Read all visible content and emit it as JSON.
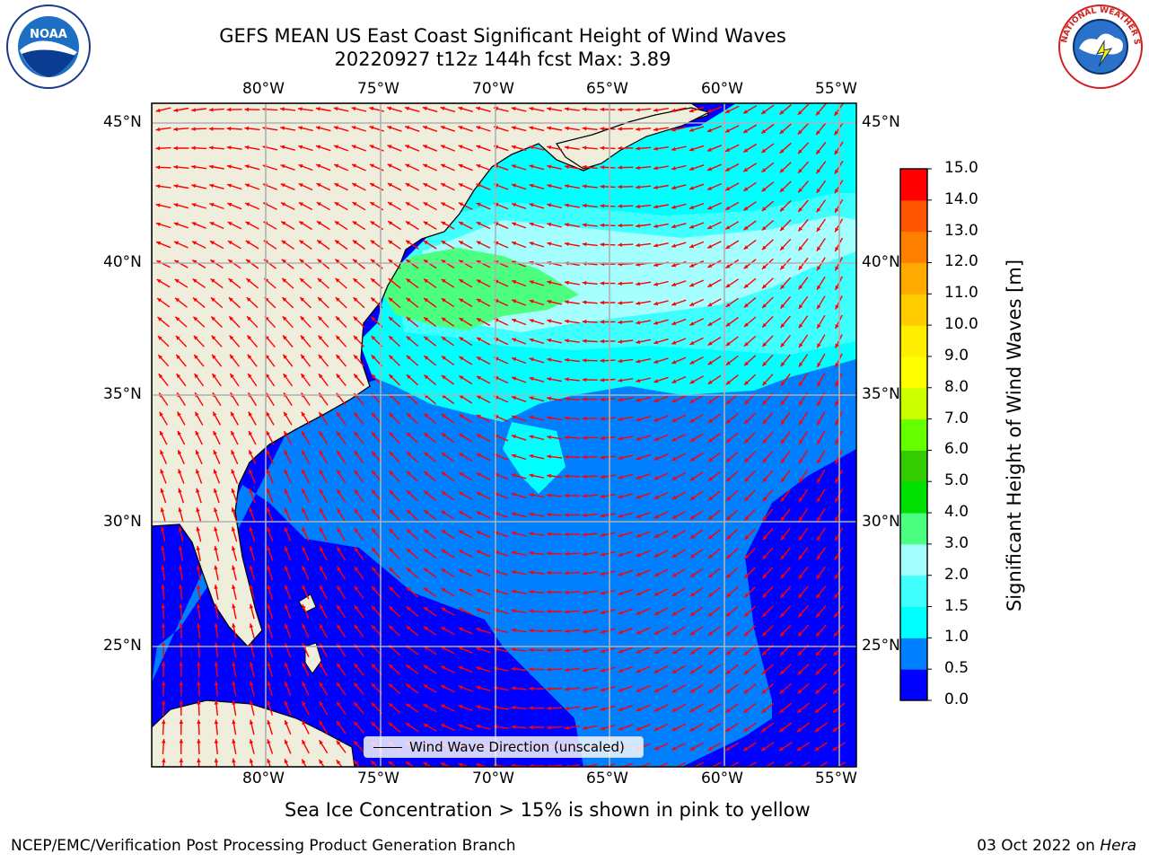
{
  "title_line1": "GEFS MEAN US East Coast Significant Height of Wind Waves",
  "title_line2": "20220927 t12z 144h fcst   Max: 3.89",
  "map": {
    "lon_range": [
      -85,
      -54
    ],
    "lat_range": [
      20.5,
      46
    ],
    "lon_tick_labels": [
      "80°W",
      "75°W",
      "70°W",
      "65°W",
      "60°W",
      "55°W"
    ],
    "lat_tick_labels": [
      "45°N",
      "40°N",
      "35°N",
      "30°N",
      "25°N"
    ],
    "land_color": "#efeddc",
    "grid_color": "#b0b0b0",
    "arrow_color": "#ff0000"
  },
  "colorbar": {
    "tick_labels": [
      "0.0",
      "0.5",
      "1.0",
      "1.5",
      "2.0",
      "3.0",
      "4.0",
      "5.0",
      "6.0",
      "7.0",
      "8.0",
      "9.0",
      "10.0",
      "11.0",
      "12.0",
      "13.0",
      "14.0",
      "15.0"
    ],
    "colors": [
      "#0000ff",
      "#0080ff",
      "#00ffff",
      "#40ffff",
      "#a6ffff",
      "#4dff80",
      "#00e000",
      "#33cc00",
      "#66ff00",
      "#ccff00",
      "#ffff00",
      "#ffee00",
      "#ffcc00",
      "#ffaa00",
      "#ff8000",
      "#ff5500",
      "#ff0000"
    ],
    "title": "Significant Height of Wind Waves [m]"
  },
  "legend_text": "Wind Wave Direction (unscaled)",
  "note": "Sea Ice Concentration > 15% is shown in pink to yellow",
  "footer_left": "NCEP/EMC/Verification Post Processing Product Generation Branch",
  "footer_date": "03 Oct 2022 on",
  "footer_host": "Hera",
  "logos": {
    "left_text": "NOAA",
    "right_text": "NATIONAL WEATHER SERVICE"
  }
}
